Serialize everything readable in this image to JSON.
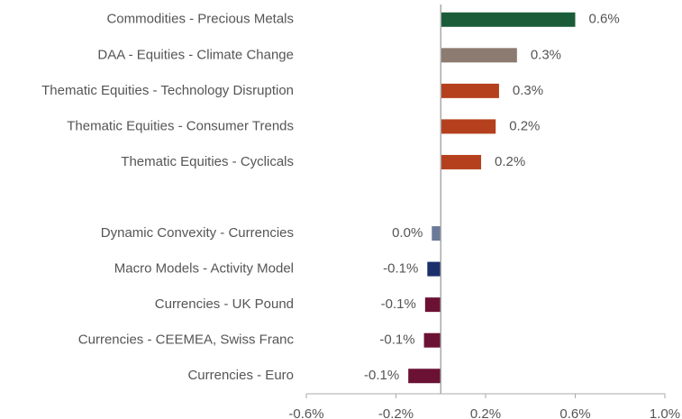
{
  "chart_data": {
    "type": "hbar",
    "categories": [
      "Commodities - Precious Metals",
      "DAA - Equities - Climate Change",
      "Thematic Equities - Technology Disruption",
      "Thematic Equities - Consumer Trends",
      "Thematic Equities - Cyclicals",
      null,
      "Dynamic Convexity - Currencies",
      "Macro Models - Activity Model",
      "Currencies - UK Pound",
      "Currencies - CEEMEA, Swiss Franc",
      "Currencies - Euro"
    ],
    "values": [
      0.6,
      0.34,
      0.26,
      0.245,
      0.18,
      null,
      -0.04,
      -0.06,
      -0.07,
      -0.075,
      -0.145
    ],
    "value_labels": [
      "0.6%",
      "0.3%",
      "0.3%",
      "0.2%",
      "0.2%",
      null,
      "0.0%",
      "-0.1%",
      "-0.1%",
      "-0.1%",
      "-0.1%"
    ],
    "colors": [
      "#1a5c38",
      "#8c7b70",
      "#b5401e",
      "#b5401e",
      "#b5401e",
      null,
      "#6b7a99",
      "#1a2f6b",
      "#6b1234",
      "#6b1234",
      "#6b1234"
    ],
    "xlim": [
      -0.6,
      1.0
    ],
    "xticks": [
      {
        "value": -0.6,
        "label": "-0.6%"
      },
      {
        "value": -0.2,
        "label": "-0.2%"
      },
      {
        "value": 0.2,
        "label": "0.2%"
      },
      {
        "value": 0.6,
        "label": "0.6%"
      },
      {
        "value": 1.0,
        "label": "1.0%"
      }
    ]
  }
}
